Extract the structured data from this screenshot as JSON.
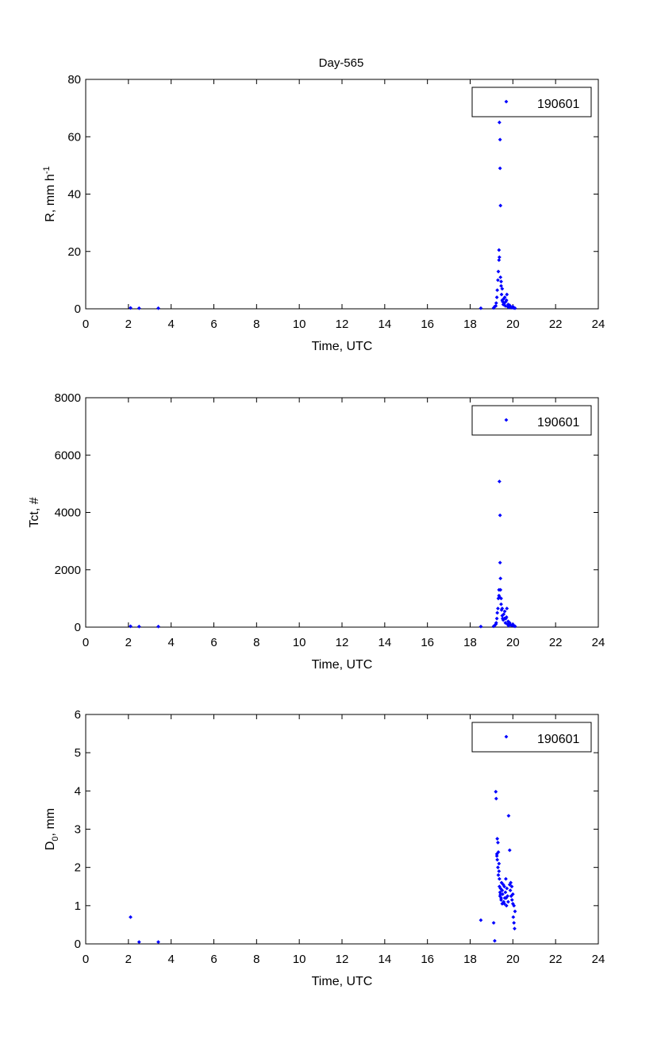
{
  "figure_title": "Day-565",
  "colors": {
    "marker": "#0000ff",
    "axis": "#000000",
    "background": "#ffffff"
  },
  "chart_data": [
    {
      "type": "scatter",
      "title": "Day-565",
      "xlabel": "Time, UTC",
      "ylabel": "R, mm h",
      "ylabel_superscript": "-1",
      "xlim": [
        0,
        24
      ],
      "ylim": [
        0,
        80
      ],
      "xticks": [
        0,
        2,
        4,
        6,
        8,
        10,
        12,
        14,
        16,
        18,
        20,
        22,
        24
      ],
      "yticks": [
        0,
        20,
        40,
        60,
        80
      ],
      "grid": false,
      "legend_position": "top-right",
      "series": [
        {
          "name": "190601",
          "marker": "diamond",
          "color": "#0000ff",
          "x": [
            2.1,
            2.5,
            3.4,
            18.5,
            19.1,
            19.15,
            19.2,
            19.22,
            19.25,
            19.27,
            19.3,
            19.32,
            19.35,
            19.35,
            19.37,
            19.37,
            19.4,
            19.4,
            19.42,
            19.42,
            19.45,
            19.45,
            19.47,
            19.5,
            19.5,
            19.52,
            19.55,
            19.57,
            19.6,
            19.62,
            19.65,
            19.67,
            19.7,
            19.72,
            19.75,
            19.78,
            19.8,
            19.85,
            19.9,
            19.95,
            20.0,
            20.05,
            20.1
          ],
          "y": [
            0.3,
            0.2,
            0.2,
            0.2,
            0.3,
            0.8,
            1.0,
            2.0,
            4.0,
            6.5,
            10.0,
            13.0,
            17.0,
            20.5,
            18.0,
            65.0,
            59.0,
            49.0,
            36.0,
            11.0,
            8.0,
            9.5,
            5.0,
            3.0,
            7.0,
            2.5,
            1.5,
            3.5,
            2.0,
            4.0,
            1.0,
            2.5,
            3.0,
            5.0,
            0.8,
            1.5,
            0.5,
            1.2,
            0.6,
            0.4,
            0.8,
            0.3,
            0.2
          ]
        }
      ]
    },
    {
      "type": "scatter",
      "xlabel": "Time, UTC",
      "ylabel": "Tct, #",
      "xlim": [
        0,
        24
      ],
      "ylim": [
        0,
        8000
      ],
      "xticks": [
        0,
        2,
        4,
        6,
        8,
        10,
        12,
        14,
        16,
        18,
        20,
        22,
        24
      ],
      "yticks": [
        0,
        2000,
        4000,
        6000,
        8000
      ],
      "grid": false,
      "legend_position": "top-right",
      "series": [
        {
          "name": "190601",
          "marker": "diamond",
          "color": "#0000ff",
          "x": [
            2.1,
            2.5,
            3.4,
            18.5,
            19.1,
            19.15,
            19.2,
            19.22,
            19.25,
            19.27,
            19.3,
            19.32,
            19.35,
            19.35,
            19.37,
            19.37,
            19.4,
            19.4,
            19.42,
            19.42,
            19.45,
            19.45,
            19.47,
            19.5,
            19.5,
            19.52,
            19.55,
            19.57,
            19.6,
            19.62,
            19.65,
            19.67,
            19.7,
            19.72,
            19.75,
            19.78,
            19.8,
            19.85,
            19.9,
            19.95,
            20.0,
            20.05,
            20.1
          ],
          "y": [
            30,
            20,
            20,
            20,
            30,
            60,
            100,
            150,
            300,
            500,
            650,
            1000,
            1100,
            1300,
            1050,
            5080,
            3900,
            2250,
            1700,
            1300,
            1000,
            800,
            600,
            400,
            650,
            300,
            250,
            450,
            300,
            550,
            150,
            300,
            350,
            650,
            100,
            200,
            50,
            150,
            80,
            60,
            100,
            40,
            30
          ]
        }
      ]
    },
    {
      "type": "scatter",
      "xlabel": "Time, UTC",
      "ylabel": "D",
      "ylabel_subscript": "0",
      "ylabel_suffix": ", mm",
      "xlim": [
        0,
        24
      ],
      "ylim": [
        0,
        6
      ],
      "xticks": [
        0,
        2,
        4,
        6,
        8,
        10,
        12,
        14,
        16,
        18,
        20,
        22,
        24
      ],
      "yticks": [
        0,
        1,
        2,
        3,
        4,
        5,
        6
      ],
      "grid": false,
      "legend_position": "top-right",
      "series": [
        {
          "name": "190601",
          "marker": "diamond",
          "color": "#0000ff",
          "x": [
            2.1,
            2.5,
            3.4,
            18.5,
            19.1,
            19.15,
            19.2,
            19.22,
            19.25,
            19.27,
            19.3,
            19.32,
            19.35,
            19.35,
            19.37,
            19.37,
            19.4,
            19.4,
            19.42,
            19.42,
            19.45,
            19.45,
            19.47,
            19.5,
            19.5,
            19.52,
            19.55,
            19.57,
            19.6,
            19.62,
            19.65,
            19.67,
            19.7,
            19.72,
            19.75,
            19.78,
            19.8,
            19.85,
            19.9,
            19.95,
            20.0,
            20.05,
            20.1,
            19.25,
            19.27,
            19.3,
            19.32,
            19.85,
            19.88,
            19.92,
            19.96,
            20.0,
            20.02,
            20.05,
            20.08,
            19.6,
            19.68
          ],
          "y": [
            0.7,
            0.05,
            0.05,
            0.62,
            0.55,
            0.08,
            3.98,
            3.8,
            2.3,
            2.75,
            2.65,
            2.4,
            2.1,
            1.9,
            1.7,
            1.5,
            1.35,
            1.25,
            1.45,
            1.3,
            1.2,
            1.15,
            1.6,
            1.4,
            1.05,
            1.3,
            1.55,
            1.1,
            1.5,
            1.2,
            1.35,
            1.7,
            1.0,
            1.45,
            1.25,
            1.1,
            3.35,
            2.45,
            1.6,
            1.5,
            1.3,
            1.0,
            0.85,
            2.35,
            2.2,
            2.0,
            1.8,
            1.55,
            1.4,
            1.25,
            1.15,
            1.05,
            0.7,
            0.55,
            0.4,
            1.05,
            1.2
          ]
        }
      ]
    }
  ]
}
